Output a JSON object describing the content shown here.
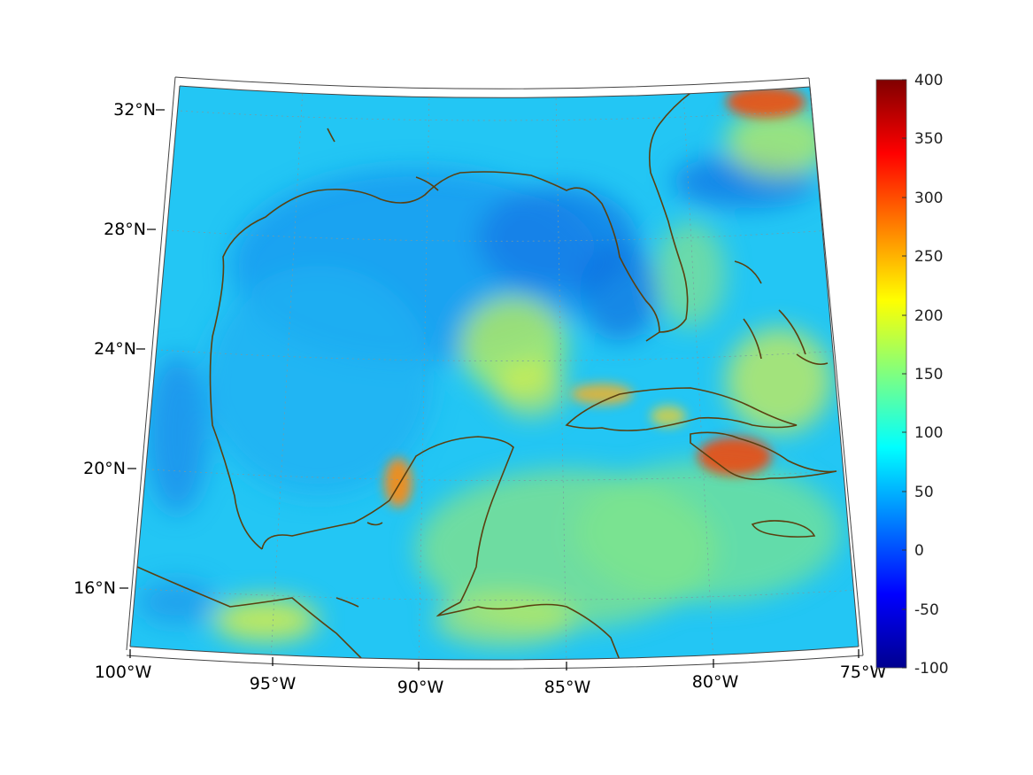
{
  "map": {
    "lat_labels": [
      "32°N",
      "28°N",
      "24°N",
      "20°N",
      "16°N"
    ],
    "lon_labels": [
      "100°W",
      "95°W",
      "90°W",
      "85°W",
      "80°W",
      "75°W"
    ],
    "projection": "conic",
    "coastline_color": "#5a4010"
  },
  "colorbar": {
    "labels": [
      "400",
      "350",
      "300",
      "250",
      "200",
      "150",
      "100",
      "50",
      "0",
      "-50",
      "-100"
    ],
    "colormap": "jet",
    "min": -100,
    "max": 400
  }
}
